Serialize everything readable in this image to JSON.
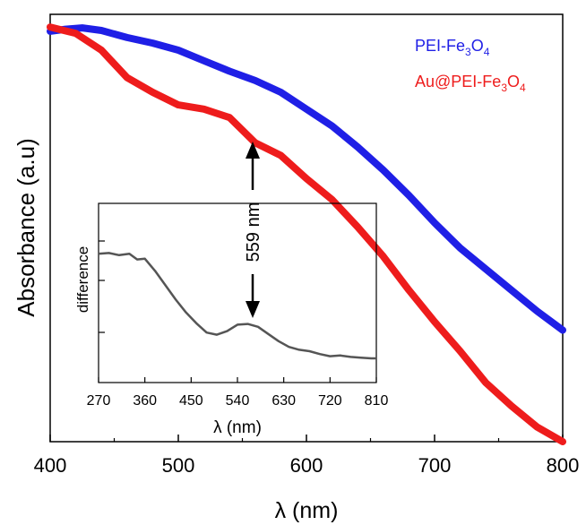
{
  "chart_data": [
    {
      "type": "line",
      "xlabel": "λ (nm)",
      "ylabel": "Absorbance (a.u)",
      "xlim": [
        400,
        800
      ],
      "ylim": [
        0,
        1
      ],
      "x_ticks": [
        "400",
        "500",
        "600",
        "700",
        "800"
      ],
      "y_ticks_labeled": false,
      "grid": false,
      "legend_position": "top-right",
      "series": [
        {
          "name": "PEI-Fe3O4",
          "color": "#1f1fe6",
          "x": [
            400,
            412,
            425,
            440,
            460,
            480,
            500,
            520,
            540,
            560,
            580,
            600,
            620,
            640,
            660,
            680,
            700,
            720,
            740,
            760,
            780,
            800
          ],
          "y": [
            0.975,
            0.98,
            0.983,
            0.977,
            0.96,
            0.947,
            0.93,
            0.905,
            0.88,
            0.858,
            0.83,
            0.79,
            0.75,
            0.7,
            0.645,
            0.585,
            0.52,
            0.46,
            0.41,
            0.36,
            0.31,
            0.265
          ]
        },
        {
          "name": "Au@PEI-Fe3O4",
          "color": "#ee1c1c",
          "x": [
            400,
            420,
            440,
            460,
            480,
            500,
            520,
            540,
            560,
            580,
            600,
            620,
            640,
            660,
            680,
            700,
            720,
            740,
            760,
            780,
            800
          ],
          "y": [
            0.985,
            0.97,
            0.93,
            0.865,
            0.83,
            0.8,
            0.79,
            0.77,
            0.71,
            0.68,
            0.625,
            0.575,
            0.51,
            0.44,
            0.36,
            0.285,
            0.215,
            0.14,
            0.085,
            0.035,
            0.0
          ]
        }
      ],
      "legend": [
        {
          "label_prefix": "PEI-Fe",
          "sub1": "3",
          "mid": "O",
          "sub2": "4"
        },
        {
          "label_prefix": "Au@PEI-Fe",
          "sub1": "3",
          "mid": "O",
          "sub2": "4"
        }
      ],
      "annotation": {
        "text": "559 nm",
        "x": 559
      }
    },
    {
      "type": "line",
      "inset": true,
      "xlabel": "λ (nm)",
      "ylabel": "difference",
      "xlim": [
        270,
        810
      ],
      "ylim": [
        0,
        1
      ],
      "x_ticks": [
        "270",
        "360",
        "450",
        "540",
        "630",
        "720",
        "810"
      ],
      "y_ticks_labeled": false,
      "series": [
        {
          "color": "#555555",
          "x": [
            270,
            290,
            310,
            330,
            345,
            360,
            380,
            400,
            420,
            440,
            460,
            480,
            500,
            520,
            540,
            560,
            580,
            600,
            620,
            640,
            660,
            680,
            700,
            720,
            740,
            760,
            780,
            800,
            810
          ],
          "y": [
            0.73,
            0.735,
            0.72,
            0.73,
            0.69,
            0.695,
            0.61,
            0.51,
            0.41,
            0.32,
            0.245,
            0.18,
            0.165,
            0.19,
            0.235,
            0.24,
            0.22,
            0.17,
            0.12,
            0.08,
            0.06,
            0.05,
            0.03,
            0.015,
            0.02,
            0.01,
            0.005,
            0.0,
            0.0
          ]
        }
      ]
    }
  ]
}
